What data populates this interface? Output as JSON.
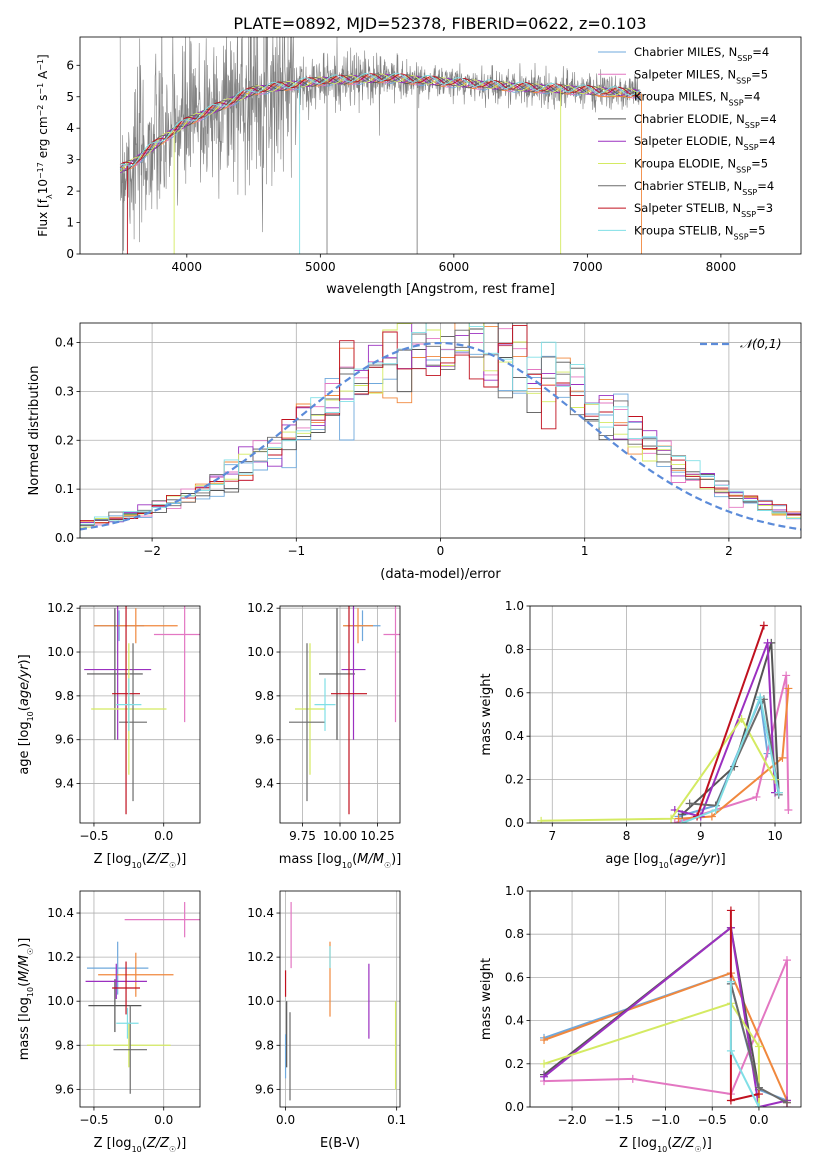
{
  "figure_title": "PLATE=0892, MJD=52378, FIBERID=0622, z=0.103",
  "colors": {
    "Chabrier MILES": "#6fa8dc",
    "Salpeter MILES": "#e377c2",
    "Kroupa MILES": "#f0883e",
    "Chabrier ELODIE": "#555555",
    "Salpeter ELODIE": "#9b30c0",
    "Kroupa ELODIE": "#d4ea62",
    "Chabrier STELIB": "#6b6b6b",
    "Salpeter STELIB": "#c0111f",
    "Kroupa STELIB": "#80dfe6",
    "data": "#808080",
    "gauss": "#5b8bd9"
  },
  "chart_data": [
    {
      "panel": "spectrum",
      "type": "line",
      "xlabel": "wavelength [Angstrom, rest frame]",
      "ylabel": "Flux [fλ10⁻¹⁷ erg cm⁻² s⁻¹ A⁻¹]",
      "xlim": [
        3200,
        8600
      ],
      "ylim": [
        0,
        6.9
      ],
      "xticks": [
        4000,
        5000,
        6000,
        7000,
        8000
      ],
      "yticks": [
        0,
        1,
        2,
        3,
        4,
        5,
        6
      ],
      "legend_position": "top-right",
      "legend": [
        {
          "label": "Chabrier MILES, N",
          "sub": "SSP",
          "tail": "=4"
        },
        {
          "label": "Salpeter MILES, N",
          "sub": "SSP",
          "tail": "=5"
        },
        {
          "label": "Kroupa MILES, N",
          "sub": "SSP",
          "tail": "=4"
        },
        {
          "label": "Chabrier ELODIE, N",
          "sub": "SSP",
          "tail": "=4"
        },
        {
          "label": "Salpeter ELODIE, N",
          "sub": "SSP",
          "tail": "=4"
        },
        {
          "label": "Kroupa ELODIE, N",
          "sub": "SSP",
          "tail": "=5"
        },
        {
          "label": "Chabrier STELIB, N",
          "sub": "SSP",
          "tail": "=4"
        },
        {
          "label": "Salpeter STELIB, N",
          "sub": "SSP",
          "tail": "=3"
        },
        {
          "label": "Kroupa STELIB, N",
          "sub": "SSP",
          "tail": "=5"
        }
      ],
      "continuum": {
        "x": [
          3500,
          3600,
          3800,
          4000,
          4200,
          4500,
          5000,
          5500,
          6000,
          6500,
          7000,
          7400
        ],
        "y": [
          2.7,
          2.9,
          3.6,
          4.2,
          4.6,
          5.2,
          5.5,
          5.6,
          5.45,
          5.3,
          5.2,
          5.1
        ]
      }
    },
    {
      "panel": "residuals",
      "type": "step-histogram",
      "xlabel": "(data-model)/error",
      "ylabel": "Normed distribution",
      "xlim": [
        -2.5,
        2.5
      ],
      "ylim": [
        0,
        0.44
      ],
      "xticks": [
        -2,
        -1,
        0,
        1,
        2
      ],
      "yticks": [
        0.0,
        0.1,
        0.2,
        0.3,
        0.4
      ],
      "legend": "𝒩(0,1)",
      "legend_position": "top-right",
      "bins": 50
    },
    {
      "panel": "age-vs-Z",
      "type": "errorbar",
      "xlabel": "Z [log₁₀(Z/Z☉)]",
      "ylabel": "age  [log₁₀(age/yr)]",
      "xlim": [
        -0.6,
        0.26
      ],
      "ylim": [
        9.22,
        10.21
      ],
      "xticks": [
        -0.5,
        0.0
      ],
      "yticks": [
        9.4,
        9.6,
        9.8,
        10.0,
        10.2
      ],
      "points": [
        {
          "model": "Chabrier MILES",
          "x": -0.32,
          "xerr": 0.18,
          "y": 10.12,
          "yerr": 0.07
        },
        {
          "model": "Salpeter MILES",
          "x": 0.15,
          "xerr": 0.22,
          "y": 10.08,
          "yerr": 0.4
        },
        {
          "model": "Kroupa MILES",
          "x": -0.2,
          "xerr": 0.3,
          "y": 10.12,
          "yerr": 0.08
        },
        {
          "model": "Chabrier ELODIE",
          "x": -0.35,
          "xerr": 0.2,
          "y": 9.9,
          "yerr": 0.3
        },
        {
          "model": "Salpeter ELODIE",
          "x": -0.33,
          "xerr": 0.24,
          "y": 9.92,
          "yerr": 0.32
        },
        {
          "model": "Kroupa ELODIE",
          "x": -0.25,
          "xerr": 0.27,
          "y": 9.74,
          "yerr": 0.3
        },
        {
          "model": "Chabrier STELIB",
          "x": -0.22,
          "xerr": 0.1,
          "y": 9.68,
          "yerr": 0.36
        },
        {
          "model": "Salpeter STELIB",
          "x": -0.27,
          "xerr": 0.1,
          "y": 9.81,
          "yerr": 0.55
        },
        {
          "model": "Kroupa STELIB",
          "x": -0.25,
          "xerr": 0.09,
          "y": 9.76,
          "yerr": 0.12
        }
      ]
    },
    {
      "panel": "age-vs-mass",
      "type": "errorbar",
      "xlabel": "mass [log₁₀(M/M☉)]",
      "ylabel": "",
      "xlim": [
        9.6,
        10.4
      ],
      "ylim": [
        9.22,
        10.21
      ],
      "xticks": [
        9.75,
        10.0,
        10.25
      ],
      "xticklabels": [
        "9.75",
        "10.00",
        "10.25"
      ],
      "yticks": [
        9.4,
        9.6,
        9.8,
        10.0,
        10.2
      ],
      "points": [
        {
          "model": "Chabrier MILES",
          "x": 10.15,
          "xerr": 0.12,
          "y": 10.12,
          "yerr": 0.07
        },
        {
          "model": "Salpeter MILES",
          "x": 10.37,
          "xerr": 0.08,
          "y": 10.08,
          "yerr": 0.4
        },
        {
          "model": "Kroupa MILES",
          "x": 10.12,
          "xerr": 0.1,
          "y": 10.12,
          "yerr": 0.08
        },
        {
          "model": "Chabrier ELODIE",
          "x": 9.98,
          "xerr": 0.12,
          "y": 9.9,
          "yerr": 0.3
        },
        {
          "model": "Salpeter ELODIE",
          "x": 10.09,
          "xerr": 0.08,
          "y": 9.92,
          "yerr": 0.32
        },
        {
          "model": "Kroupa ELODIE",
          "x": 9.8,
          "xerr": 0.1,
          "y": 9.74,
          "yerr": 0.3
        },
        {
          "model": "Chabrier STELIB",
          "x": 9.78,
          "xerr": 0.12,
          "y": 9.68,
          "yerr": 0.36
        },
        {
          "model": "Salpeter STELIB",
          "x": 10.06,
          "xerr": 0.12,
          "y": 9.81,
          "yerr": 0.55
        },
        {
          "model": "Kroupa STELIB",
          "x": 9.9,
          "xerr": 0.07,
          "y": 9.76,
          "yerr": 0.12
        }
      ]
    },
    {
      "panel": "weight-vs-age",
      "type": "line",
      "xlabel": "age  [log₁₀(age/yr)]",
      "ylabel": "mass weight",
      "xlim": [
        6.7,
        10.35
      ],
      "ylim": [
        0,
        1
      ],
      "xticks": [
        7,
        8,
        9,
        10
      ],
      "yticks": [
        0.0,
        0.2,
        0.4,
        0.6,
        0.8,
        1.0
      ],
      "series": [
        {
          "model": "Chabrier MILES",
          "x": [
            8.7,
            9.2,
            9.8,
            9.9
          ],
          "y": [
            0.03,
            0.08,
            0.57,
            0.32
          ]
        },
        {
          "model": "Salpeter MILES",
          "x": [
            8.65,
            9.75,
            10.15,
            10.18
          ],
          "y": [
            0.0,
            0.12,
            0.68,
            0.06
          ]
        },
        {
          "model": "Kroupa MILES",
          "x": [
            8.7,
            9.15,
            10.1,
            10.18
          ],
          "y": [
            0.02,
            0.03,
            0.3,
            0.62
          ]
        },
        {
          "model": "Chabrier ELODIE",
          "x": [
            8.75,
            9.45,
            9.95,
            10.05
          ],
          "y": [
            0.04,
            0.26,
            0.83,
            0.14
          ]
        },
        {
          "model": "Salpeter ELODIE",
          "x": [
            8.65,
            9.0,
            9.9,
            10.0
          ],
          "y": [
            0.06,
            0.03,
            0.83,
            0.14
          ]
        },
        {
          "model": "Kroupa ELODIE",
          "x": [
            6.85,
            8.6,
            9.55,
            10.0
          ],
          "y": [
            0.01,
            0.02,
            0.48,
            0.2
          ]
        },
        {
          "model": "Chabrier STELIB",
          "x": [
            8.85,
            9.2,
            9.85,
            10.05
          ],
          "y": [
            0.09,
            0.08,
            0.57,
            0.13
          ]
        },
        {
          "model": "Salpeter STELIB",
          "x": [
            8.95,
            9.85
          ],
          "y": [
            0.03,
            0.91
          ]
        },
        {
          "model": "Kroupa STELIB",
          "x": [
            8.75,
            9.2,
            9.8,
            10.05
          ],
          "y": [
            0.0,
            0.06,
            0.58,
            0.14
          ]
        }
      ]
    },
    {
      "panel": "mass-vs-Z",
      "type": "errorbar",
      "xlabel": "Z [log₁₀(Z/Z☉)]",
      "ylabel": "mass [log₁₀(M/M☉)]",
      "xlim": [
        -0.6,
        0.26
      ],
      "ylim": [
        9.52,
        10.5
      ],
      "xticks": [
        -0.5,
        0.0
      ],
      "yticks": [
        9.6,
        9.8,
        10.0,
        10.2,
        10.4
      ],
      "points": [
        {
          "model": "Chabrier MILES",
          "x": -0.33,
          "xerr": 0.22,
          "y": 10.15,
          "yerr": 0.12
        },
        {
          "model": "Salpeter MILES",
          "x": 0.15,
          "xerr": 0.43,
          "y": 10.37,
          "yerr": 0.08
        },
        {
          "model": "Kroupa MILES",
          "x": -0.2,
          "xerr": 0.27,
          "y": 10.12,
          "yerr": 0.1
        },
        {
          "model": "Chabrier ELODIE",
          "x": -0.35,
          "xerr": 0.19,
          "y": 9.98,
          "yerr": 0.12
        },
        {
          "model": "Salpeter ELODIE",
          "x": -0.34,
          "xerr": 0.22,
          "y": 10.09,
          "yerr": 0.08
        },
        {
          "model": "Kroupa ELODIE",
          "x": -0.25,
          "xerr": 0.3,
          "y": 9.8,
          "yerr": 0.1
        },
        {
          "model": "Chabrier STELIB",
          "x": -0.24,
          "xerr": 0.12,
          "y": 9.78,
          "yerr": 0.2
        },
        {
          "model": "Salpeter STELIB",
          "x": -0.27,
          "xerr": 0.1,
          "y": 10.06,
          "yerr": 0.12
        },
        {
          "model": "Kroupa STELIB",
          "x": -0.26,
          "xerr": 0.08,
          "y": 9.9,
          "yerr": 0.07
        }
      ]
    },
    {
      "panel": "mass-vs-EBV",
      "type": "errorbar",
      "xlabel": "E(B-V)",
      "ylabel": "",
      "xlim": [
        -0.005,
        0.103
      ],
      "ylim": [
        9.52,
        10.5
      ],
      "xticks": [
        0.0,
        0.1
      ],
      "yticks": [
        9.6,
        9.8,
        10.0,
        10.2,
        10.4
      ],
      "points": [
        {
          "model": "Chabrier MILES",
          "x": 0.0,
          "xerr": 0,
          "y": 9.75,
          "yerr": 0.1
        },
        {
          "model": "Salpeter MILES",
          "x": 0.005,
          "xerr": 0,
          "y": 10.3,
          "yerr": 0.15
        },
        {
          "model": "Kroupa MILES",
          "x": 0.04,
          "xerr": 0,
          "y": 10.1,
          "yerr": 0.17
        },
        {
          "model": "Chabrier ELODIE",
          "x": 0.001,
          "xerr": 0,
          "y": 9.85,
          "yerr": 0.15
        },
        {
          "model": "Salpeter ELODIE",
          "x": 0.075,
          "xerr": 0,
          "y": 10.0,
          "yerr": 0.17
        },
        {
          "model": "Kroupa ELODIE",
          "x": 0.099,
          "xerr": 0,
          "y": 9.8,
          "yerr": 0.2
        },
        {
          "model": "Chabrier STELIB",
          "x": 0.004,
          "xerr": 0,
          "y": 9.75,
          "yerr": 0.2
        },
        {
          "model": "Salpeter STELIB",
          "x": 0.0,
          "xerr": 0,
          "y": 10.08,
          "yerr": 0.06
        },
        {
          "model": "Kroupa STELIB",
          "x": 0.04,
          "xerr": 0,
          "y": 10.2,
          "yerr": 0.05
        }
      ]
    },
    {
      "panel": "weight-vs-Z",
      "type": "line",
      "xlabel": "Z [log₁₀(Z/Z☉)]",
      "ylabel": "mass weight",
      "xlim": [
        -2.45,
        0.45
      ],
      "ylim": [
        0,
        1
      ],
      "xticks": [
        -2.0,
        -1.5,
        -1.0,
        -0.5,
        0.0
      ],
      "yticks": [
        0.0,
        0.2,
        0.4,
        0.6,
        0.8,
        1.0
      ],
      "series": [
        {
          "model": "Chabrier MILES",
          "x": [
            -2.3,
            -0.3,
            -0.3,
            0.0,
            0.3
          ],
          "y": [
            0.32,
            0.62,
            0.57,
            0.08,
            0.03
          ]
        },
        {
          "model": "Salpeter MILES",
          "x": [
            -2.3,
            -1.35,
            -0.3,
            0.3,
            0.3
          ],
          "y": [
            0.12,
            0.13,
            0.06,
            0.68,
            0.0
          ]
        },
        {
          "model": "Kroupa MILES",
          "x": [
            -2.3,
            -0.3,
            0.3,
            0.3
          ],
          "y": [
            0.31,
            0.62,
            0.03,
            0.02
          ]
        },
        {
          "model": "Chabrier ELODIE",
          "x": [
            -2.3,
            -0.3,
            0.0
          ],
          "y": [
            0.15,
            0.83,
            0.08
          ]
        },
        {
          "model": "Salpeter ELODIE",
          "x": [
            -2.3,
            -0.3,
            0.0,
            0.3
          ],
          "y": [
            0.14,
            0.83,
            0.0,
            0.03
          ]
        },
        {
          "model": "Kroupa ELODIE",
          "x": [
            -2.3,
            -0.3,
            0.0,
            0.0
          ],
          "y": [
            0.2,
            0.48,
            0.28,
            0.0
          ]
        },
        {
          "model": "Chabrier STELIB",
          "x": [
            -0.3,
            0.0,
            0.3
          ],
          "y": [
            0.57,
            0.09,
            0.02
          ]
        },
        {
          "model": "Salpeter STELIB",
          "x": [
            -0.3,
            -0.3,
            0.0
          ],
          "y": [
            0.91,
            0.03,
            0.06
          ]
        },
        {
          "model": "Kroupa STELIB",
          "x": [
            -0.3,
            -0.3,
            0.0
          ],
          "y": [
            0.58,
            0.26,
            0.0
          ]
        }
      ]
    }
  ]
}
